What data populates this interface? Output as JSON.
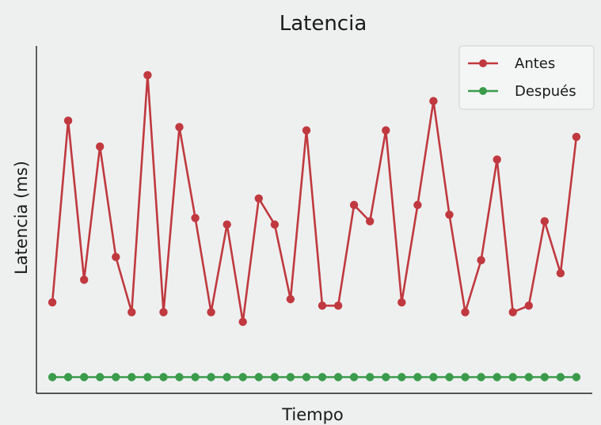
{
  "chart_data": {
    "type": "line",
    "title": "Latencia",
    "xlabel": "Tiempo",
    "ylabel": "Latencia (ms)",
    "x": [
      1,
      2,
      3,
      4,
      5,
      6,
      7,
      8,
      9,
      10,
      11,
      12,
      13,
      14,
      15,
      16,
      17,
      18,
      19,
      20,
      21,
      22,
      23,
      24,
      25,
      26,
      27,
      28,
      29,
      30,
      31,
      32,
      33,
      34
    ],
    "xlim": [
      0,
      35
    ],
    "ylim": [
      0,
      107
    ],
    "grid": false,
    "legend_position": "top-right",
    "series": [
      {
        "name": "Antes",
        "color": "#c0393f",
        "values": [
          28,
          84,
          35,
          76,
          42,
          25,
          98,
          25,
          82,
          54,
          25,
          52,
          22,
          60,
          52,
          29,
          81,
          27,
          27,
          58,
          53,
          81,
          28,
          58,
          90,
          55,
          25,
          41,
          72,
          25,
          27,
          53,
          37,
          79
        ]
      },
      {
        "name": "Después",
        "color": "#3a9b4a",
        "values": [
          5,
          5,
          5,
          5,
          5,
          5,
          5,
          5,
          5,
          5,
          5,
          5,
          5,
          5,
          5,
          5,
          5,
          5,
          5,
          5,
          5,
          5,
          5,
          5,
          5,
          5,
          5,
          5,
          5,
          5,
          5,
          5,
          5,
          5
        ]
      }
    ]
  }
}
